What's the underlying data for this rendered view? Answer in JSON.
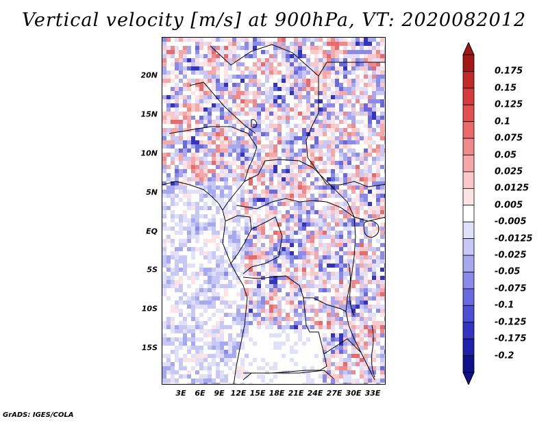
{
  "title": "Vertical velocity [m/s] at 900hPa, VT: 2020082012",
  "credit": "GrADS: IGES/COLA",
  "map": {
    "region": "Central Africa",
    "lat_range": [
      -20,
      25
    ],
    "lon_range": [
      0,
      35
    ],
    "lat_labels": [
      {
        "lat": 20,
        "text": "20N"
      },
      {
        "lat": 15,
        "text": "15N"
      },
      {
        "lat": 10,
        "text": "10N"
      },
      {
        "lat": 5,
        "text": "5N"
      },
      {
        "lat": 0,
        "text": "EQ"
      },
      {
        "lat": -5,
        "text": "5S"
      },
      {
        "lat": -10,
        "text": "10S"
      },
      {
        "lat": -15,
        "text": "15S"
      }
    ],
    "lon_labels": [
      {
        "lon": 3,
        "text": "3E"
      },
      {
        "lon": 6,
        "text": "6E"
      },
      {
        "lon": 9,
        "text": "9E"
      },
      {
        "lon": 12,
        "text": "12E"
      },
      {
        "lon": 15,
        "text": "15E"
      },
      {
        "lon": 18,
        "text": "18E"
      },
      {
        "lon": 21,
        "text": "21E"
      },
      {
        "lon": 24,
        "text": "24E"
      },
      {
        "lon": 27,
        "text": "27E"
      },
      {
        "lon": 30,
        "text": "30E"
      },
      {
        "lon": 33,
        "text": "33E"
      }
    ]
  },
  "colorbar": {
    "levels": [
      "0.175",
      "0.15",
      "0.125",
      "0.1",
      "0.075",
      "0.05",
      "0.025",
      "0.0125",
      "0.005",
      "-0.005",
      "-0.0125",
      "-0.025",
      "-0.05",
      "-0.075",
      "-0.1",
      "-0.125",
      "-0.175",
      "-0.2"
    ],
    "colors": [
      "#a01818",
      "#c02a2a",
      "#d43c3c",
      "#e05050",
      "#e86a6a",
      "#f08a8a",
      "#f6a8a8",
      "#fac8c8",
      "#fde4e4",
      "#ffffff",
      "#e0e0fa",
      "#c8c8f6",
      "#a8a8f0",
      "#8a8aea",
      "#6a6ae0",
      "#4e4ed4",
      "#3434c0",
      "#2020a8",
      "#10108a"
    ]
  }
}
